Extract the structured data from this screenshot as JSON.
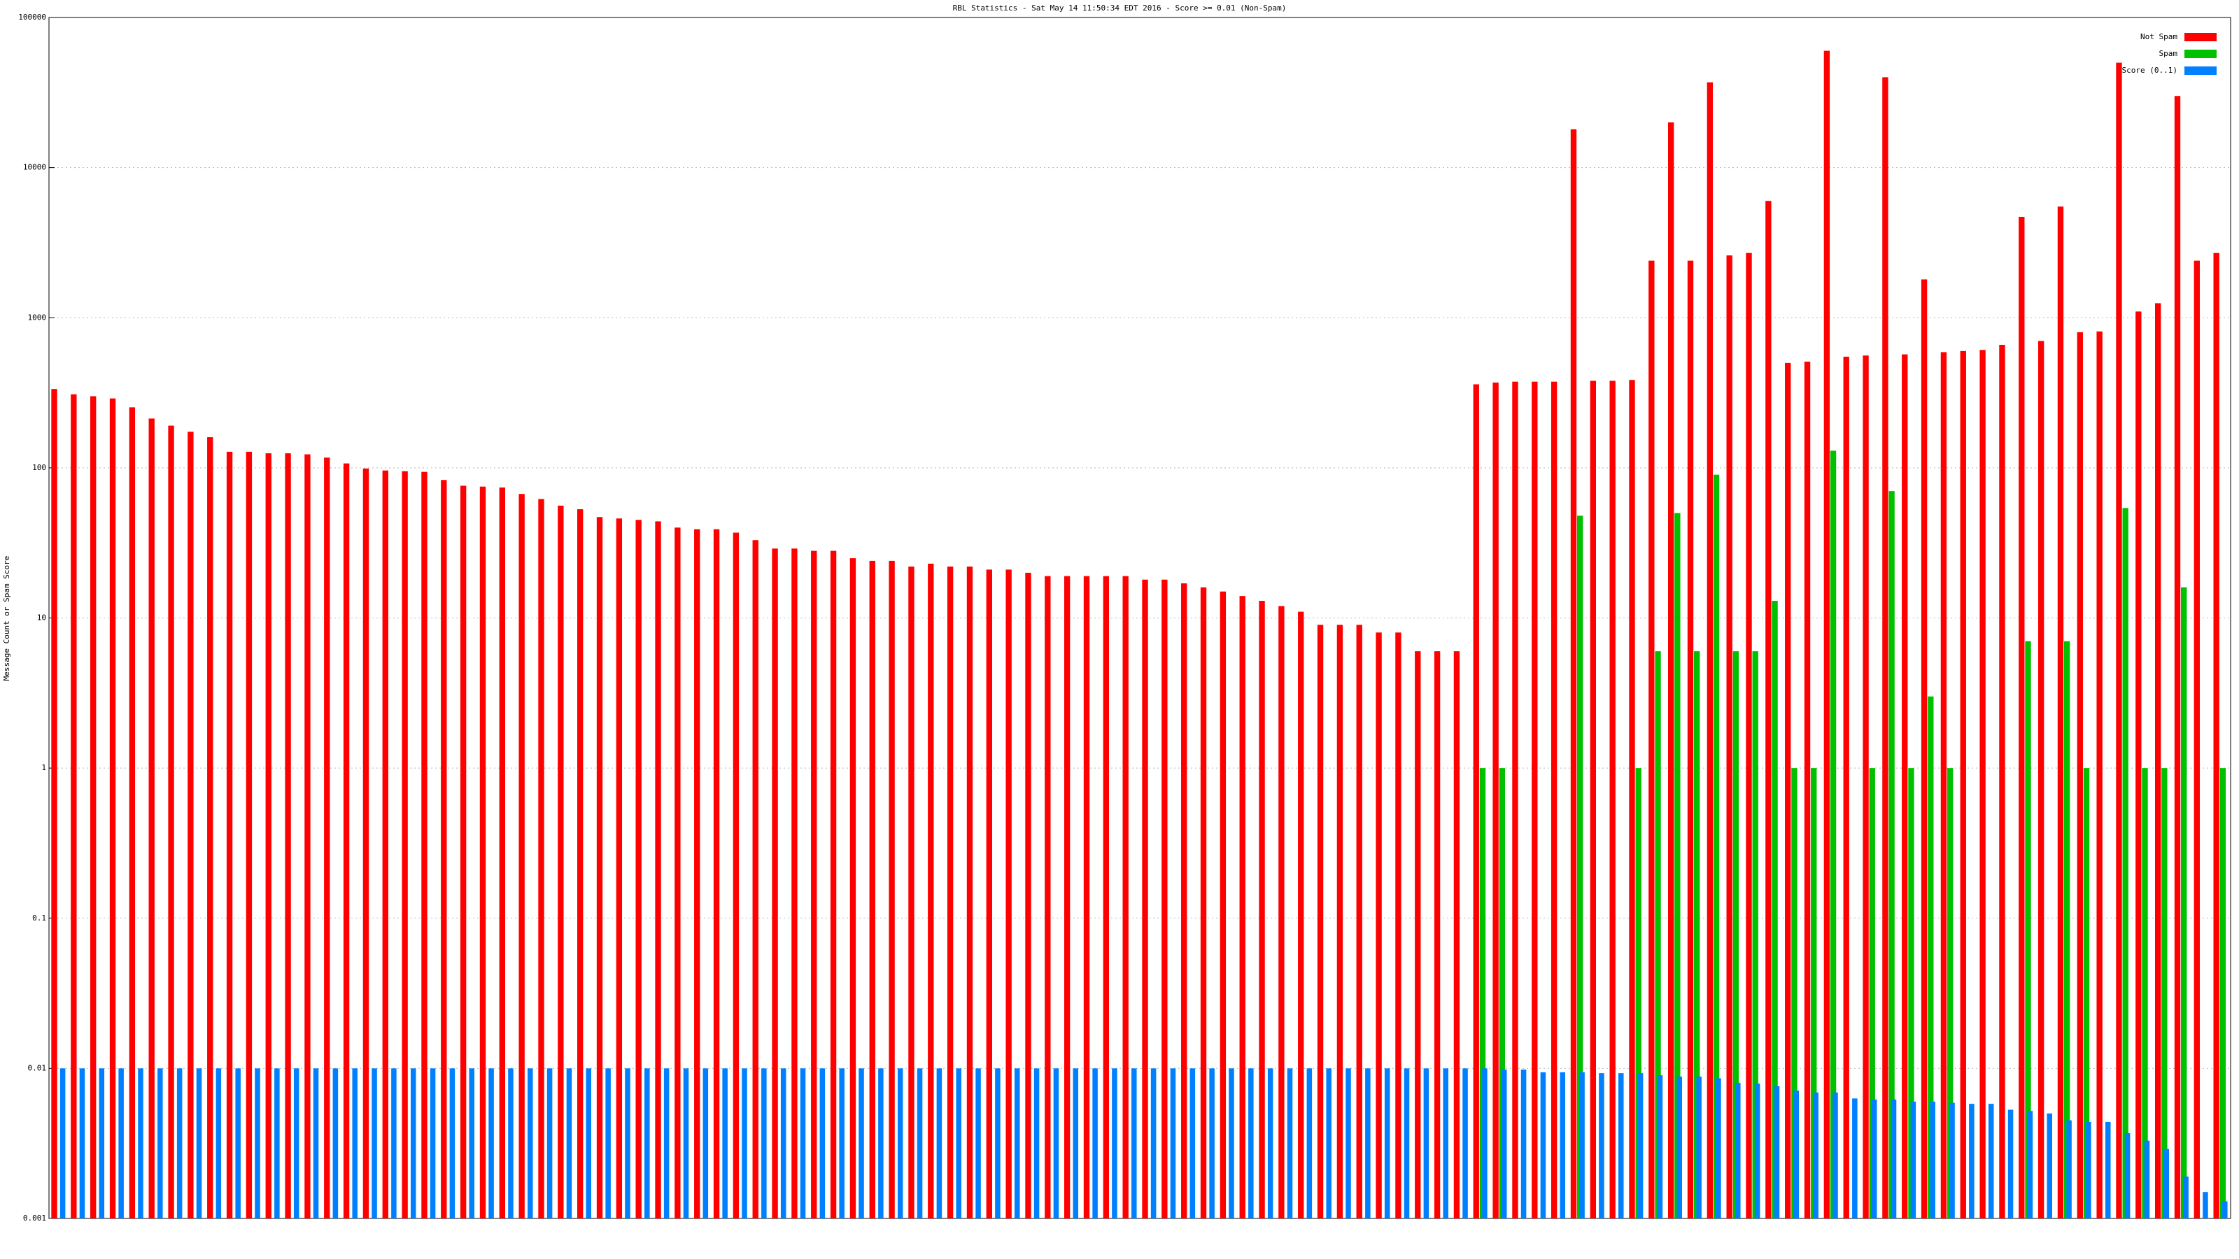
{
  "chart_data": {
    "type": "bar",
    "title": "RBL Statistics - Sat May 14 11:50:34 EDT 2016 - Score >= 0.01 (Non-Spam)",
    "y_label": "Message Count or Spam Score",
    "log_scale": true,
    "grid": true,
    "legend": "top-right",
    "ylim": [
      0.001,
      100000
    ],
    "yticks": [
      0.001,
      0.01,
      0.1,
      1,
      10,
      100,
      1000,
      10000,
      100000
    ],
    "categories": [
      null,
      null,
      null,
      null,
      null,
      null,
      null,
      null,
      null,
      null,
      null,
      null,
      null,
      null,
      null,
      null,
      null,
      null,
      null,
      null,
      null,
      null,
      null,
      null,
      null,
      null,
      null,
      null,
      null,
      null,
      null,
      null,
      null,
      null,
      null,
      null,
      null,
      null,
      null,
      null,
      null,
      null,
      null,
      null,
      null,
      null,
      null,
      null,
      null,
      null,
      null,
      null,
      null,
      null,
      null,
      null,
      null,
      null,
      null,
      null,
      null,
      null,
      null,
      null,
      null,
      null,
      null,
      null,
      null,
      null,
      null,
      null,
      null,
      null,
      null,
      null,
      null,
      null,
      null,
      null,
      null,
      null,
      null,
      null,
      null,
      null,
      null,
      null,
      null,
      null,
      null,
      null,
      null,
      null,
      null,
      null,
      null,
      null,
      null,
      null,
      null,
      null,
      null,
      null,
      null,
      null,
      null,
      null,
      null,
      null,
      null,
      null
    ],
    "series": [
      {
        "name": "Not Spam",
        "color": "#ff0000",
        "values": [
          335,
          309,
          300,
          290,
          253,
          213,
          191,
          174,
          160,
          128,
          128,
          125,
          125,
          123,
          117,
          107,
          99,
          96,
          95,
          94,
          83,
          76,
          75,
          74,
          67,
          62,
          56,
          53,
          47,
          46,
          45,
          44,
          40,
          39,
          39,
          37,
          33,
          29,
          29,
          28,
          28,
          25,
          24,
          24,
          22,
          23,
          22,
          22,
          21,
          21,
          20,
          19,
          19,
          19,
          19,
          19,
          18,
          18,
          17,
          16,
          15,
          14,
          13,
          12,
          11,
          9,
          9,
          9,
          8,
          8,
          6,
          6,
          6,
          360,
          370,
          375,
          375,
          375,
          18000,
          380,
          380,
          385,
          2400,
          20000,
          2400,
          37000,
          2600,
          2700,
          6000,
          500,
          510,
          60000,
          550,
          560,
          40000,
          570,
          1800,
          590,
          600,
          610,
          660,
          4700,
          700,
          5500,
          800,
          810,
          50000,
          1100,
          1250,
          30000,
          2400,
          2700
        ]
      },
      {
        "name": "Spam",
        "color": "#00c000",
        "values": [
          null,
          null,
          null,
          null,
          null,
          null,
          null,
          null,
          null,
          null,
          null,
          null,
          null,
          null,
          null,
          null,
          null,
          null,
          null,
          null,
          null,
          null,
          null,
          null,
          null,
          null,
          null,
          null,
          null,
          null,
          null,
          null,
          null,
          null,
          null,
          null,
          null,
          null,
          null,
          null,
          null,
          null,
          null,
          null,
          null,
          null,
          null,
          null,
          null,
          null,
          null,
          null,
          null,
          null,
          null,
          null,
          null,
          null,
          null,
          null,
          null,
          null,
          null,
          null,
          null,
          null,
          null,
          null,
          null,
          null,
          null,
          null,
          null,
          1,
          1,
          null,
          null,
          null,
          48,
          null,
          null,
          1,
          6,
          50,
          6,
          90,
          6,
          6,
          13,
          1,
          1,
          130,
          null,
          1,
          70,
          1,
          3,
          1,
          null,
          null,
          null,
          7,
          null,
          7,
          1,
          null,
          54,
          1,
          1,
          16,
          null,
          1
        ]
      },
      {
        "name": "Score (0..1)",
        "color": "#0080ff",
        "values": [
          0.01,
          0.01,
          0.01,
          0.01,
          0.01,
          0.01,
          0.01,
          0.01,
          0.01,
          0.01,
          0.01,
          0.01,
          0.01,
          0.01,
          0.01,
          0.01,
          0.01,
          0.01,
          0.01,
          0.01,
          0.01,
          0.01,
          0.01,
          0.01,
          0.01,
          0.01,
          0.01,
          0.01,
          0.01,
          0.01,
          0.01,
          0.01,
          0.01,
          0.01,
          0.01,
          0.01,
          0.01,
          0.01,
          0.01,
          0.01,
          0.01,
          0.01,
          0.01,
          0.01,
          0.01,
          0.01,
          0.01,
          0.01,
          0.01,
          0.01,
          0.01,
          0.01,
          0.01,
          0.01,
          0.01,
          0.01,
          0.01,
          0.01,
          0.01,
          0.01,
          0.01,
          0.01,
          0.01,
          0.01,
          0.01,
          0.01,
          0.01,
          0.01,
          0.01,
          0.01,
          0.01,
          0.01,
          0.01,
          0.01,
          0.0098,
          0.0098,
          0.0094,
          0.0094,
          0.0094,
          0.0093,
          0.0093,
          0.0093,
          0.009,
          0.0088,
          0.0088,
          0.0086,
          0.008,
          0.0079,
          0.0076,
          0.0071,
          0.0069,
          0.0069,
          0.0063,
          0.0062,
          0.0062,
          0.006,
          0.006,
          0.0059,
          0.0058,
          0.0058,
          0.0053,
          0.0052,
          0.005,
          0.0045,
          0.0044,
          0.0044,
          0.0037,
          0.0033,
          0.0029,
          0.0019,
          0.0015,
          0.0013
        ]
      }
    ]
  }
}
